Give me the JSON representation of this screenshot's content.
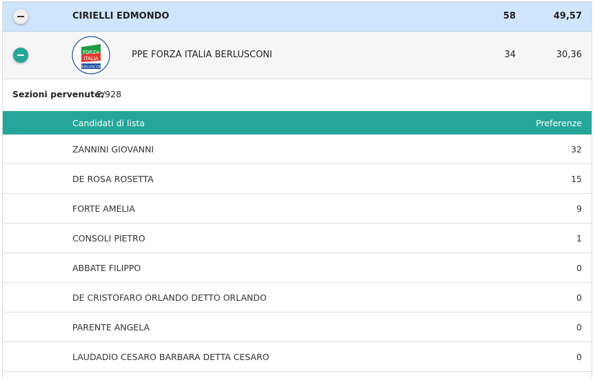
{
  "candidate": {
    "name": "CIRIELLI EDMONDO",
    "votes": "58",
    "percent": "49,57"
  },
  "list": {
    "name": "PPE FORZA ITALIA BERLUSCONI",
    "votes": "34",
    "percent": "30,36",
    "logo_text": [
      "PARTITO POPOLARE EUROPEO",
      "FORZA ITALIA",
      "BERLUSCONI"
    ]
  },
  "sections": {
    "label": "Sezioni pervenute:",
    "value": "2/928"
  },
  "table": {
    "col_name": "Candidati di lista",
    "col_pref": "Preferenze",
    "rows": [
      {
        "name": "ZANNINI GIOVANNI",
        "pref": "32"
      },
      {
        "name": "DE ROSA ROSETTA",
        "pref": "15"
      },
      {
        "name": "FORTE AMELIA",
        "pref": "9"
      },
      {
        "name": "CONSOLI PIETRO",
        "pref": "1"
      },
      {
        "name": "ABBATE FILIPPO",
        "pref": "0"
      },
      {
        "name": "DE CRISTOFARO ORLANDO DETTO ORLANDO",
        "pref": "0"
      },
      {
        "name": "PARENTE ANGELA",
        "pref": "0"
      },
      {
        "name": "LAUDADIO CESARO BARBARA DETTA CESARO",
        "pref": "0"
      }
    ]
  },
  "colors": {
    "accent": "#26a69a",
    "candidate_bg": "#cfe5fc"
  }
}
